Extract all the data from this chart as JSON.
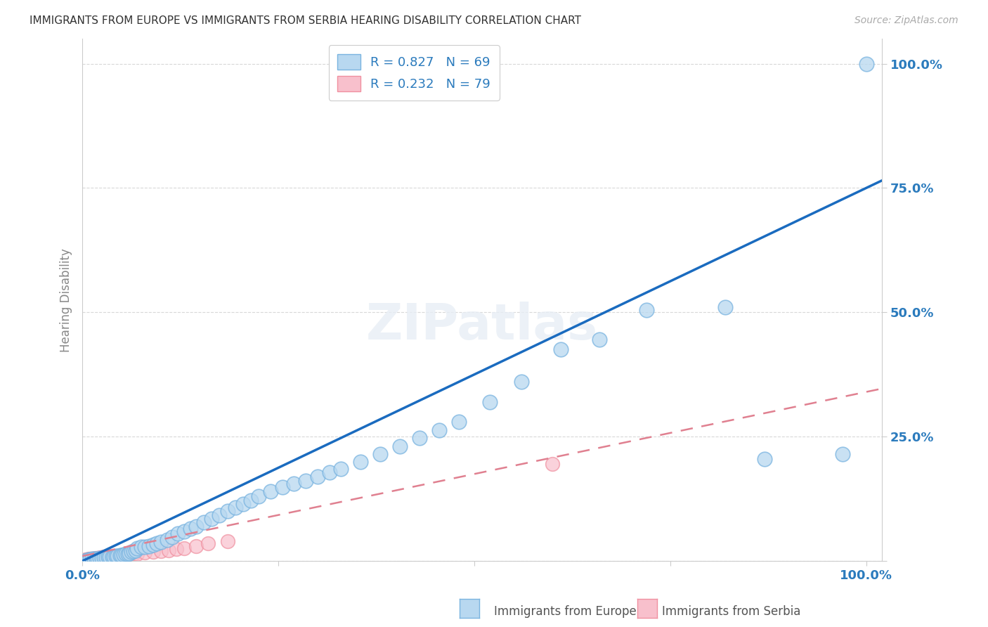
{
  "title": "IMMIGRANTS FROM EUROPE VS IMMIGRANTS FROM SERBIA HEARING DISABILITY CORRELATION CHART",
  "source": "Source: ZipAtlas.com",
  "ylabel": "Hearing Disability",
  "legend_europe": "Immigrants from Europe",
  "legend_serbia": "Immigrants from Serbia",
  "R_europe": 0.827,
  "N_europe": 69,
  "R_serbia": 0.232,
  "N_serbia": 79,
  "europe_face_color": "#b8d8f0",
  "europe_edge_color": "#7ab4e0",
  "serbia_face_color": "#f8c0cc",
  "serbia_edge_color": "#f090a0",
  "europe_line_color": "#1a6bbf",
  "serbia_line_color": "#e08090",
  "axis_tick_color": "#2b7bbd",
  "title_color": "#333333",
  "grid_color": "#d8d8d8",
  "spine_color": "#cccccc",
  "background_color": "#ffffff",
  "europe_line_slope": 0.75,
  "europe_line_intercept": 0.0,
  "serbia_line_slope": 0.33,
  "serbia_line_intercept": 0.01,
  "europe_scatter_x": [
    0.005,
    0.008,
    0.01,
    0.012,
    0.015,
    0.018,
    0.02,
    0.022,
    0.025,
    0.028,
    0.03,
    0.033,
    0.035,
    0.038,
    0.04,
    0.043,
    0.045,
    0.048,
    0.05,
    0.053,
    0.055,
    0.058,
    0.06,
    0.063,
    0.065,
    0.068,
    0.07,
    0.075,
    0.08,
    0.085,
    0.09,
    0.095,
    0.1,
    0.108,
    0.115,
    0.122,
    0.13,
    0.138,
    0.145,
    0.155,
    0.165,
    0.175,
    0.185,
    0.195,
    0.205,
    0.215,
    0.225,
    0.24,
    0.255,
    0.27,
    0.285,
    0.3,
    0.315,
    0.33,
    0.355,
    0.38,
    0.405,
    0.43,
    0.455,
    0.48,
    0.52,
    0.56,
    0.61,
    0.66,
    0.72,
    0.82,
    0.87,
    0.97,
    1.0
  ],
  "europe_scatter_y": [
    0.002,
    0.003,
    0.003,
    0.004,
    0.004,
    0.005,
    0.005,
    0.006,
    0.006,
    0.007,
    0.007,
    0.008,
    0.008,
    0.009,
    0.009,
    0.01,
    0.01,
    0.011,
    0.012,
    0.013,
    0.014,
    0.015,
    0.016,
    0.018,
    0.02,
    0.022,
    0.025,
    0.028,
    0.028,
    0.03,
    0.032,
    0.035,
    0.038,
    0.042,
    0.048,
    0.055,
    0.06,
    0.065,
    0.07,
    0.078,
    0.085,
    0.092,
    0.1,
    0.108,
    0.115,
    0.122,
    0.13,
    0.14,
    0.148,
    0.155,
    0.162,
    0.17,
    0.178,
    0.185,
    0.2,
    0.215,
    0.23,
    0.248,
    0.263,
    0.28,
    0.32,
    0.36,
    0.425,
    0.445,
    0.505,
    0.51,
    0.205,
    0.215,
    1.0
  ],
  "serbia_scatter_x": [
    0.001,
    0.002,
    0.002,
    0.003,
    0.003,
    0.004,
    0.004,
    0.005,
    0.005,
    0.006,
    0.006,
    0.007,
    0.007,
    0.008,
    0.008,
    0.009,
    0.009,
    0.01,
    0.01,
    0.011,
    0.011,
    0.012,
    0.012,
    0.013,
    0.013,
    0.014,
    0.014,
    0.015,
    0.015,
    0.016,
    0.016,
    0.017,
    0.017,
    0.018,
    0.018,
    0.019,
    0.019,
    0.02,
    0.02,
    0.021,
    0.021,
    0.022,
    0.022,
    0.023,
    0.023,
    0.024,
    0.025,
    0.026,
    0.027,
    0.028,
    0.029,
    0.03,
    0.031,
    0.032,
    0.033,
    0.034,
    0.035,
    0.036,
    0.038,
    0.04,
    0.042,
    0.044,
    0.046,
    0.048,
    0.05,
    0.055,
    0.06,
    0.065,
    0.07,
    0.08,
    0.09,
    0.1,
    0.11,
    0.12,
    0.13,
    0.145,
    0.16,
    0.185,
    0.6
  ],
  "serbia_scatter_y": [
    0.001,
    0.001,
    0.002,
    0.001,
    0.002,
    0.002,
    0.003,
    0.001,
    0.002,
    0.002,
    0.003,
    0.002,
    0.003,
    0.003,
    0.004,
    0.002,
    0.003,
    0.003,
    0.004,
    0.003,
    0.004,
    0.004,
    0.005,
    0.003,
    0.004,
    0.004,
    0.005,
    0.004,
    0.005,
    0.004,
    0.005,
    0.005,
    0.006,
    0.004,
    0.005,
    0.005,
    0.006,
    0.005,
    0.006,
    0.005,
    0.006,
    0.006,
    0.007,
    0.005,
    0.006,
    0.006,
    0.007,
    0.007,
    0.008,
    0.006,
    0.007,
    0.007,
    0.008,
    0.008,
    0.009,
    0.007,
    0.008,
    0.008,
    0.009,
    0.009,
    0.01,
    0.009,
    0.01,
    0.01,
    0.011,
    0.012,
    0.013,
    0.014,
    0.015,
    0.017,
    0.018,
    0.02,
    0.022,
    0.024,
    0.026,
    0.03,
    0.035,
    0.04,
    0.195
  ]
}
